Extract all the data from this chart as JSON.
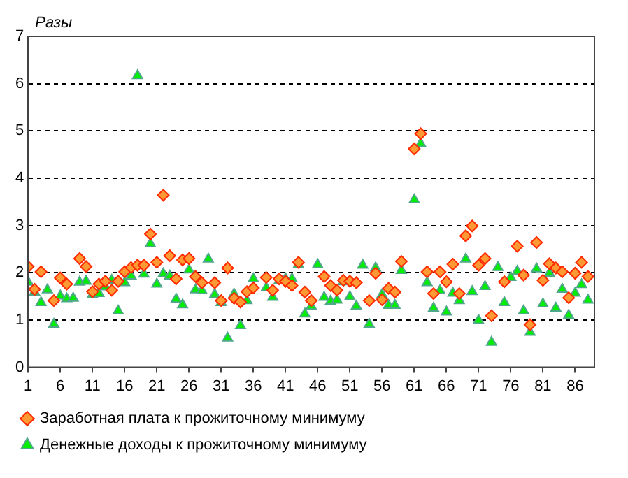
{
  "chart_data": {
    "type": "scatter",
    "ylabel": "Разы",
    "xlim": [
      1,
      89
    ],
    "xticks": [
      1,
      6,
      11,
      16,
      21,
      26,
      31,
      36,
      41,
      46,
      51,
      56,
      61,
      66,
      71,
      76,
      81,
      86
    ],
    "ylim": [
      0,
      7
    ],
    "yticks": [
      0,
      1,
      2,
      3,
      4,
      5,
      6,
      7
    ],
    "grid": "y",
    "legend": "bottom",
    "x": [
      1,
      2,
      3,
      4,
      5,
      6,
      7,
      8,
      9,
      10,
      11,
      12,
      13,
      14,
      15,
      16,
      17,
      18,
      19,
      20,
      21,
      22,
      23,
      24,
      25,
      26,
      27,
      28,
      29,
      30,
      31,
      32,
      33,
      34,
      35,
      36,
      37,
      38,
      39,
      40,
      41,
      42,
      43,
      44,
      45,
      46,
      47,
      48,
      49,
      50,
      51,
      52,
      53,
      54,
      55,
      56,
      57,
      58,
      59,
      60,
      61,
      62,
      63,
      64,
      65,
      66,
      67,
      68,
      69,
      70,
      71,
      72,
      73,
      74,
      75,
      76,
      77,
      78,
      79,
      80,
      81,
      82,
      83,
      84,
      85,
      86,
      87,
      88
    ],
    "series": [
      {
        "name": "Заработная плата к прожиточному минимуму",
        "color": "#ff9933",
        "marker": "diamond",
        "values": [
          2.13,
          1.65,
          2.02,
          null,
          1.41,
          1.89,
          1.76,
          null,
          2.3,
          2.13,
          1.6,
          1.76,
          1.82,
          1.63,
          1.82,
          2.02,
          2.11,
          2.16,
          2.16,
          2.82,
          2.22,
          3.64,
          2.36,
          1.87,
          2.27,
          2.3,
          1.92,
          1.79,
          null,
          1.79,
          1.41,
          2.1,
          1.46,
          1.38,
          1.6,
          1.68,
          null,
          1.9,
          1.63,
          1.87,
          1.82,
          1.73,
          2.22,
          1.59,
          1.41,
          null,
          1.92,
          1.73,
          1.63,
          1.84,
          1.82,
          1.79,
          null,
          1.41,
          1.99,
          1.43,
          1.67,
          1.59,
          2.24,
          null,
          4.62,
          4.94,
          2.02,
          1.56,
          2.02,
          1.81,
          2.18,
          1.56,
          2.78,
          2.99,
          2.16,
          2.3,
          1.09,
          null,
          1.81,
          null,
          2.56,
          1.95,
          0.9,
          2.64,
          1.84,
          2.19,
          2.1,
          2.02,
          1.47,
          1.99,
          2.22,
          1.92
        ]
      },
      {
        "name": "Денежные доходы к прожиточному минимуму",
        "color": "#00ee00",
        "marker": "triangle",
        "values": [
          1.8,
          1.59,
          1.37,
          1.64,
          0.91,
          1.51,
          1.45,
          1.46,
          1.8,
          1.82,
          1.54,
          1.56,
          1.7,
          1.84,
          1.19,
          1.79,
          1.93,
          6.17,
          1.97,
          2.61,
          1.76,
          1.98,
          1.93,
          1.44,
          1.32,
          2.06,
          1.64,
          1.62,
          2.29,
          1.54,
          1.37,
          0.62,
          1.55,
          0.88,
          1.41,
          1.87,
          null,
          1.68,
          1.48,
          1.83,
          1.87,
          1.87,
          2.17,
          1.13,
          1.29,
          2.17,
          1.48,
          1.4,
          1.42,
          1.81,
          1.49,
          1.29,
          2.16,
          0.91,
          2.1,
          1.54,
          1.31,
          1.31,
          2.05,
          null,
          3.54,
          4.73,
          1.79,
          1.25,
          1.62,
          1.17,
          1.57,
          1.41,
          2.29,
          1.6,
          0.99,
          1.71,
          0.53,
          2.11,
          1.37,
          1.9,
          2.03,
          1.19,
          0.74,
          2.08,
          1.34,
          1.99,
          1.25,
          1.65,
          1.1,
          1.57,
          1.75,
          1.42
        ]
      }
    ]
  }
}
